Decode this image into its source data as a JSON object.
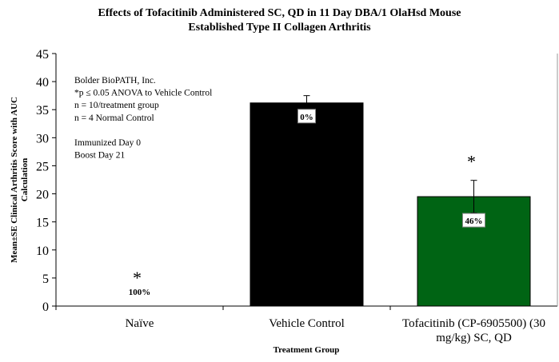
{
  "chart_data": {
    "type": "bar",
    "title_line1": "Effects of Tofacitinib Administered SC, QD in 11 Day DBA/1 OlaHsd Mouse",
    "title_line2": "Established Type II Collagen Arthritis",
    "xlabel": "Treatment Group",
    "ylabel_line1": "Mean±SE Clinical Arthritis Score with AUC",
    "ylabel_line2": "Calculation",
    "ylim": [
      0,
      45
    ],
    "yticks": [
      "0",
      "5",
      "10",
      "15",
      "20",
      "25",
      "30",
      "35",
      "40",
      "45"
    ],
    "categories": [
      {
        "line1": "Naïve",
        "line2": ""
      },
      {
        "line1": "Vehicle Control",
        "line2": ""
      },
      {
        "line1": "Tofacitinib (CP-6905500) (30",
        "line2": "mg/kg) SC, QD"
      }
    ],
    "values": [
      0,
      36.2,
      19.5
    ],
    "errors": [
      0,
      1.3,
      2.9
    ],
    "colors": [
      "#000000",
      "#000000",
      "#006414"
    ],
    "data_labels": [
      "100%",
      "0%",
      "46%"
    ],
    "significance": [
      "*",
      "",
      "*"
    ],
    "annotation": [
      "Bolder BioPATH, Inc.",
      "*p ≤ 0.05 ANOVA to Vehicle Control",
      "n = 10/treatment group",
      "n = 4 Normal Control",
      "",
      "Immunized Day 0",
      "Boost Day 21"
    ]
  }
}
